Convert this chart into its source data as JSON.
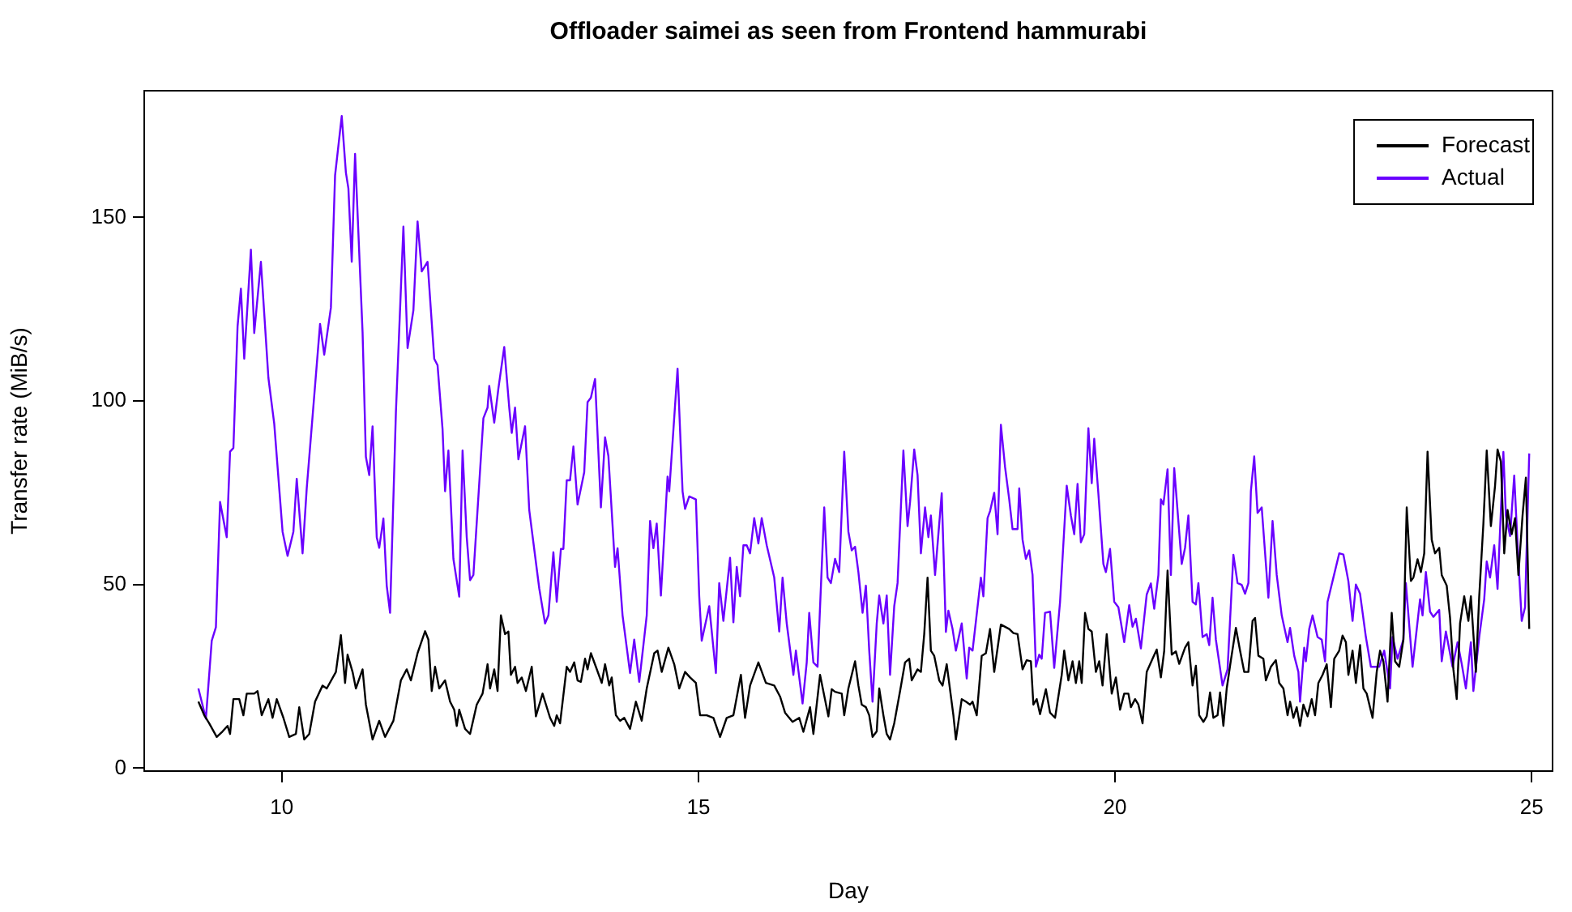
{
  "chart_data": {
    "type": "line",
    "title": "Offloader saimei as seen from Frontend hammurabi",
    "xlabel": "Day",
    "ylabel": "Transfer rate (MiB/s)",
    "xlim": [
      8.35,
      25.25
    ],
    "xticks": [
      10,
      15,
      20,
      25
    ],
    "ylim": [
      -0.8,
      184.5
    ],
    "yticks": [
      0,
      50,
      100,
      150
    ],
    "grid": false,
    "legend": "top right",
    "marker": "none",
    "line_style": "solid",
    "series": [
      {
        "name": "Forecast",
        "color": "#000000",
        "x": [
          9.0,
          9.07,
          9.13,
          9.22,
          9.29,
          9.35,
          9.38,
          9.42,
          9.49,
          9.54,
          9.58,
          9.67,
          9.71,
          9.76,
          9.84,
          9.89,
          9.94,
          10.02,
          10.09,
          10.17,
          10.21,
          10.27,
          10.33,
          10.4,
          10.49,
          10.54,
          10.65,
          10.71,
          10.76,
          10.79,
          10.85,
          10.89,
          10.97,
          11.01,
          11.09,
          11.17,
          11.24,
          11.34,
          11.43,
          11.5,
          11.55,
          11.63,
          11.72,
          11.76,
          11.8,
          11.84,
          11.89,
          11.96,
          12.02,
          12.07,
          12.1,
          12.13,
          12.2,
          12.26,
          12.34,
          12.41,
          12.47,
          12.5,
          12.55,
          12.59,
          12.63,
          12.68,
          12.72,
          12.75,
          12.8,
          12.83,
          12.88,
          12.93,
          13.0,
          13.05,
          13.13,
          13.22,
          13.27,
          13.3,
          13.34,
          13.42,
          13.46,
          13.51,
          13.55,
          13.59,
          13.64,
          13.67,
          13.71,
          13.77,
          13.84,
          13.88,
          13.93,
          13.96,
          14.01,
          14.06,
          14.11,
          14.18,
          14.25,
          14.32,
          14.38,
          14.47,
          14.51,
          14.56,
          14.64,
          14.71,
          14.77,
          14.84,
          14.9,
          14.97,
          15.02,
          15.1,
          15.18,
          15.26,
          15.34,
          15.42,
          15.51,
          15.56,
          15.62,
          15.72,
          15.81,
          15.91,
          15.98,
          16.04,
          16.13,
          16.21,
          16.26,
          16.34,
          16.38,
          16.46,
          16.56,
          16.6,
          16.64,
          16.72,
          16.75,
          16.8,
          16.88,
          16.92,
          16.96,
          17.01,
          17.05,
          17.09,
          17.14,
          17.17,
          17.22,
          17.26,
          17.3,
          17.35,
          17.42,
          17.48,
          17.53,
          17.56,
          17.63,
          17.67,
          17.71,
          17.75,
          17.79,
          17.83,
          17.89,
          17.93,
          17.98,
          18.06,
          18.09,
          18.16,
          18.21,
          18.26,
          18.29,
          18.34,
          18.4,
          18.45,
          18.5,
          18.55,
          18.63,
          18.73,
          18.78,
          18.83,
          18.89,
          18.94,
          18.99,
          19.02,
          19.06,
          19.1,
          19.17,
          19.22,
          19.28,
          19.36,
          19.39,
          19.44,
          19.49,
          19.53,
          19.57,
          19.6,
          19.64,
          19.68,
          19.72,
          19.77,
          19.81,
          19.85,
          19.9,
          19.96,
          20.01,
          20.06,
          20.11,
          20.16,
          20.19,
          20.24,
          20.28,
          20.33,
          20.38,
          20.45,
          20.5,
          20.55,
          20.59,
          20.63,
          20.68,
          20.73,
          20.77,
          20.84,
          20.88,
          20.93,
          20.97,
          21.01,
          21.06,
          21.1,
          21.14,
          21.18,
          21.23,
          21.26,
          21.3,
          21.34,
          21.39,
          21.45,
          21.5,
          21.55,
          21.6,
          21.65,
          21.68,
          21.72,
          21.78,
          21.81,
          21.87,
          21.93,
          21.97,
          22.02,
          22.07,
          22.1,
          22.14,
          22.18,
          22.22,
          22.26,
          22.31,
          22.36,
          22.4,
          22.44,
          22.49,
          22.54,
          22.59,
          22.63,
          22.69,
          22.73,
          22.77,
          22.8,
          22.85,
          22.89,
          22.94,
          22.98,
          23.02,
          23.09,
          23.14,
          23.18,
          23.22,
          23.27,
          23.32,
          23.36,
          23.41,
          23.46,
          23.5,
          23.55,
          23.58,
          23.63,
          23.67,
          23.71,
          23.75,
          23.8,
          23.84,
          23.89,
          23.92,
          23.98,
          24.02,
          24.06,
          24.1,
          24.14,
          24.19,
          24.24,
          24.27,
          24.33,
          24.37,
          24.42,
          24.46,
          24.51,
          24.56,
          24.59,
          24.63,
          24.67,
          24.71,
          24.76,
          24.8,
          24.84,
          24.89,
          24.93,
          24.97
        ],
        "values": [
          18.1,
          14.4,
          12.2,
          8.5,
          10.0,
          11.5,
          9.3,
          18.8,
          18.8,
          14.4,
          20.3,
          20.3,
          21.0,
          14.4,
          18.8,
          13.7,
          18.8,
          13.7,
          8.5,
          9.3,
          16.6,
          7.8,
          9.3,
          18.1,
          22.5,
          21.7,
          26.2,
          36.2,
          23.2,
          30.9,
          26.2,
          21.7,
          26.9,
          17.3,
          7.8,
          12.9,
          8.5,
          12.9,
          23.9,
          26.9,
          23.9,
          31.3,
          37.3,
          35.0,
          21.0,
          27.6,
          21.7,
          23.9,
          18.1,
          15.9,
          11.5,
          15.9,
          10.7,
          9.3,
          17.3,
          20.3,
          28.3,
          21.7,
          26.9,
          21.0,
          41.6,
          36.5,
          37.2,
          25.4,
          27.6,
          23.2,
          24.7,
          21.0,
          27.6,
          14.1,
          20.3,
          13.7,
          11.5,
          14.4,
          12.2,
          27.6,
          26.2,
          28.8,
          23.9,
          23.5,
          29.8,
          26.9,
          31.3,
          27.6,
          23.2,
          28.3,
          22.5,
          24.7,
          14.4,
          12.9,
          13.7,
          10.7,
          18.1,
          12.9,
          21.7,
          31.3,
          32.0,
          26.2,
          32.8,
          28.3,
          21.7,
          26.2,
          24.7,
          23.2,
          14.4,
          14.4,
          13.7,
          8.5,
          13.7,
          14.4,
          25.4,
          13.7,
          22.5,
          28.8,
          23.2,
          22.5,
          19.5,
          15.1,
          12.6,
          13.7,
          9.9,
          16.6,
          9.3,
          25.4,
          14.1,
          21.5,
          20.8,
          20.3,
          14.4,
          21.7,
          29.1,
          22.5,
          17.3,
          16.6,
          14.4,
          8.5,
          10.0,
          21.7,
          14.4,
          9.3,
          7.8,
          12.2,
          21.0,
          28.8,
          29.8,
          23.9,
          26.9,
          26.2,
          36.5,
          51.9,
          32.0,
          30.6,
          23.9,
          22.5,
          28.3,
          14.4,
          7.8,
          18.8,
          18.1,
          17.3,
          18.1,
          14.4,
          30.6,
          31.3,
          37.9,
          26.2,
          39.1,
          37.9,
          36.8,
          36.5,
          26.9,
          29.4,
          29.1,
          17.3,
          18.8,
          14.7,
          21.5,
          15.1,
          13.7,
          25.4,
          32.0,
          23.9,
          29.1,
          23.2,
          29.1,
          23.2,
          42.3,
          37.9,
          37.2,
          26.2,
          29.1,
          22.5,
          36.5,
          20.3,
          24.7,
          15.9,
          20.3,
          20.3,
          16.6,
          18.8,
          17.3,
          12.2,
          26.2,
          29.8,
          32.3,
          24.7,
          32.0,
          53.8,
          30.9,
          31.8,
          28.4,
          32.8,
          34.3,
          22.5,
          27.9,
          14.4,
          12.6,
          14.1,
          20.6,
          13.7,
          14.4,
          20.6,
          11.5,
          21.7,
          29.4,
          38.2,
          32.0,
          26.2,
          26.2,
          40.1,
          40.9,
          30.6,
          29.8,
          23.9,
          27.6,
          29.4,
          23.2,
          21.7,
          14.4,
          18.1,
          13.7,
          16.6,
          11.5,
          17.3,
          14.1,
          18.8,
          14.4,
          23.2,
          25.4,
          28.3,
          16.6,
          29.8,
          32.0,
          36.1,
          34.3,
          25.4,
          32.0,
          23.2,
          33.5,
          21.7,
          20.3,
          13.7,
          26.2,
          32.0,
          29.1,
          18.1,
          42.3,
          29.1,
          27.6,
          35.0,
          71.0,
          51.0,
          51.9,
          56.9,
          53.4,
          58.5,
          86.2,
          62.2,
          58.5,
          60.0,
          52.6,
          49.7,
          40.9,
          26.9,
          18.8,
          39.4,
          46.8,
          40.1,
          46.8,
          26.2,
          46.8,
          66.6,
          86.5,
          65.9,
          76.9,
          86.8,
          83.5,
          58.5,
          70.3,
          63.7,
          68.1,
          52.6,
          68.8,
          79.1,
          37.9
        ]
      },
      {
        "name": "Actual",
        "color": "#6a00ff",
        "x": [
          9.0,
          9.09,
          9.16,
          9.21,
          9.26,
          9.34,
          9.38,
          9.42,
          9.47,
          9.51,
          9.55,
          9.63,
          9.67,
          9.75,
          9.84,
          9.91,
          10.01,
          10.07,
          10.14,
          10.18,
          10.25,
          10.3,
          10.46,
          10.51,
          10.59,
          10.64,
          10.72,
          10.77,
          10.8,
          10.84,
          10.88,
          10.97,
          11.01,
          11.05,
          11.09,
          11.14,
          11.17,
          11.22,
          11.26,
          11.3,
          11.37,
          11.46,
          11.51,
          11.58,
          11.63,
          11.68,
          11.75,
          11.83,
          11.87,
          11.93,
          11.96,
          12.0,
          12.06,
          12.13,
          12.17,
          12.22,
          12.26,
          12.3,
          12.42,
          12.47,
          12.49,
          12.55,
          12.6,
          12.67,
          12.73,
          12.76,
          12.8,
          12.84,
          12.92,
          12.97,
          13.09,
          13.16,
          13.2,
          13.26,
          13.3,
          13.35,
          13.38,
          13.42,
          13.46,
          13.5,
          13.55,
          13.63,
          13.67,
          13.71,
          13.76,
          13.83,
          13.88,
          13.92,
          14.0,
          14.03,
          14.09,
          14.18,
          14.23,
          14.29,
          14.34,
          14.38,
          14.42,
          14.46,
          14.5,
          14.55,
          14.63,
          14.65,
          14.75,
          14.81,
          14.84,
          14.89,
          14.97,
          15.01,
          15.04,
          15.13,
          15.21,
          15.25,
          15.3,
          15.38,
          15.42,
          15.46,
          15.5,
          15.54,
          15.58,
          15.62,
          15.67,
          15.72,
          15.76,
          15.82,
          15.91,
          15.97,
          16.01,
          16.06,
          16.14,
          16.17,
          16.25,
          16.3,
          16.33,
          16.38,
          16.43,
          16.51,
          16.55,
          16.59,
          16.64,
          16.69,
          16.75,
          16.8,
          16.84,
          16.88,
          16.92,
          16.97,
          17.01,
          17.05,
          17.09,
          17.14,
          17.17,
          17.22,
          17.26,
          17.3,
          17.35,
          17.39,
          17.46,
          17.51,
          17.54,
          17.59,
          17.63,
          17.67,
          17.72,
          17.76,
          17.79,
          17.84,
          17.92,
          17.97,
          18.0,
          18.05,
          18.09,
          18.16,
          18.22,
          18.25,
          18.29,
          18.39,
          18.42,
          18.47,
          18.5,
          18.55,
          18.59,
          18.63,
          18.68,
          18.73,
          18.77,
          18.83,
          18.85,
          18.89,
          18.93,
          18.97,
          19.01,
          19.05,
          19.09,
          19.12,
          19.16,
          19.22,
          19.27,
          19.34,
          19.42,
          19.47,
          19.51,
          19.55,
          19.59,
          19.63,
          19.68,
          19.72,
          19.75,
          19.8,
          19.86,
          19.89,
          19.94,
          19.99,
          20.04,
          20.11,
          20.17,
          20.21,
          20.25,
          20.31,
          20.38,
          20.43,
          20.47,
          20.52,
          20.55,
          20.58,
          20.63,
          20.67,
          20.71,
          20.8,
          20.84,
          20.88,
          20.93,
          20.97,
          21.0,
          21.05,
          21.1,
          21.13,
          21.17,
          21.21,
          21.29,
          21.35,
          21.42,
          21.47,
          21.52,
          21.56,
          21.6,
          21.63,
          21.67,
          21.71,
          21.76,
          21.84,
          21.89,
          21.94,
          22.0,
          22.07,
          22.1,
          22.15,
          22.2,
          22.22,
          22.27,
          22.29,
          22.33,
          22.37,
          22.43,
          22.48,
          22.52,
          22.55,
          22.62,
          22.69,
          22.74,
          22.8,
          22.85,
          22.89,
          22.94,
          23.01,
          23.07,
          23.17,
          23.23,
          23.3,
          23.33,
          23.39,
          23.46,
          23.49,
          23.57,
          23.66,
          23.69,
          23.73,
          23.78,
          23.82,
          23.89,
          23.92,
          23.97,
          24.05,
          24.11,
          24.16,
          24.21,
          24.27,
          24.3,
          24.37,
          24.43,
          24.46,
          24.5,
          24.55,
          24.59,
          24.66,
          24.69,
          24.74,
          24.79,
          24.83,
          24.88,
          24.92,
          24.97
        ],
        "values": [
          21.7,
          13.5,
          34.7,
          38.4,
          72.5,
          62.9,
          86.2,
          87.2,
          120.3,
          130.6,
          111.5,
          141.2,
          118.5,
          137.9,
          106.3,
          93.8,
          64.4,
          57.8,
          64.4,
          78.8,
          58.5,
          76.2,
          121.0,
          112.6,
          125.4,
          161.4,
          177.6,
          162.2,
          157.9,
          137.9,
          167.3,
          118.8,
          84.8,
          79.8,
          93.1,
          62.9,
          60.0,
          68.0,
          49.7,
          42.3,
          96.8,
          147.5,
          114.4,
          124.7,
          148.9,
          135.3,
          137.9,
          111.5,
          109.7,
          92.3,
          75.4,
          86.5,
          57.0,
          46.7,
          86.5,
          62.9,
          51.2,
          52.6,
          95.3,
          98.2,
          104.1,
          94.1,
          103.4,
          114.7,
          98.2,
          91.3,
          98.2,
          84.1,
          93.1,
          70.3,
          49.0,
          39.4,
          41.6,
          58.8,
          45.3,
          59.7,
          59.7,
          78.4,
          78.4,
          87.6,
          71.8,
          80.6,
          99.7,
          100.9,
          106.0,
          71.0,
          90.1,
          85.0,
          54.8,
          59.9,
          41.6,
          25.9,
          35.0,
          23.5,
          33.5,
          41.6,
          67.3,
          59.9,
          66.6,
          47.0,
          79.4,
          75.4,
          108.8,
          75.4,
          70.6,
          74.0,
          73.2,
          46.8,
          34.7,
          44.1,
          25.9,
          50.4,
          40.1,
          57.3,
          39.7,
          54.8,
          46.8,
          60.7,
          60.7,
          58.5,
          68.1,
          61.2,
          68.1,
          60.7,
          51.9,
          37.2,
          51.9,
          39.4,
          25.4,
          32.0,
          17.6,
          28.8,
          42.3,
          28.8,
          27.6,
          71.0,
          51.9,
          50.4,
          57.0,
          53.4,
          86.2,
          64.4,
          59.3,
          60.3,
          53.4,
          42.3,
          49.7,
          32.0,
          18.1,
          39.4,
          47.0,
          39.4,
          47.0,
          25.4,
          44.1,
          50.4,
          86.5,
          65.9,
          72.5,
          86.8,
          79.8,
          58.5,
          71.0,
          62.9,
          68.8,
          52.6,
          74.9,
          37.1,
          42.9,
          37.9,
          32.0,
          39.4,
          24.4,
          32.8,
          32.0,
          51.9,
          46.8,
          68.1,
          70.0,
          75.0,
          63.7,
          93.5,
          82.0,
          73.2,
          65.1,
          65.1,
          76.2,
          62.2,
          57.0,
          59.3,
          52.6,
          27.6,
          30.9,
          29.8,
          42.3,
          42.6,
          27.3,
          45.3,
          76.9,
          68.8,
          63.7,
          77.4,
          61.5,
          63.7,
          92.6,
          77.6,
          89.7,
          74.7,
          55.6,
          53.4,
          59.7,
          45.3,
          43.8,
          34.3,
          44.4,
          38.5,
          40.7,
          32.6,
          47.3,
          50.3,
          43.4,
          52.6,
          73.2,
          71.8,
          81.4,
          52.6,
          81.7,
          55.6,
          60.0,
          68.8,
          45.3,
          44.6,
          50.4,
          35.7,
          36.5,
          33.5,
          46.4,
          35.0,
          22.5,
          26.9,
          58.1,
          50.4,
          49.9,
          47.5,
          50.4,
          75.4,
          84.9,
          69.5,
          71.0,
          46.4,
          67.3,
          52.6,
          41.6,
          34.3,
          38.2,
          30.6,
          26.2,
          18.1,
          32.8,
          29.1,
          37.9,
          41.6,
          35.7,
          35.0,
          29.1,
          45.3,
          51.9,
          58.5,
          58.2,
          50.9,
          40.1,
          50.0,
          47.5,
          35.7,
          27.6,
          27.6,
          32.0,
          21.7,
          35.7,
          29.8,
          35.0,
          50.4,
          27.6,
          46.0,
          41.6,
          53.4,
          42.6,
          41.2,
          43.1,
          29.1,
          37.2,
          27.6,
          34.3,
          28.4,
          21.7,
          34.3,
          21.0,
          35.7,
          46.0,
          56.3,
          51.9,
          60.7,
          48.8,
          86.1,
          68.8,
          63.2,
          79.7,
          61.0,
          40.1,
          43.8,
          85.7
        ]
      }
    ]
  }
}
